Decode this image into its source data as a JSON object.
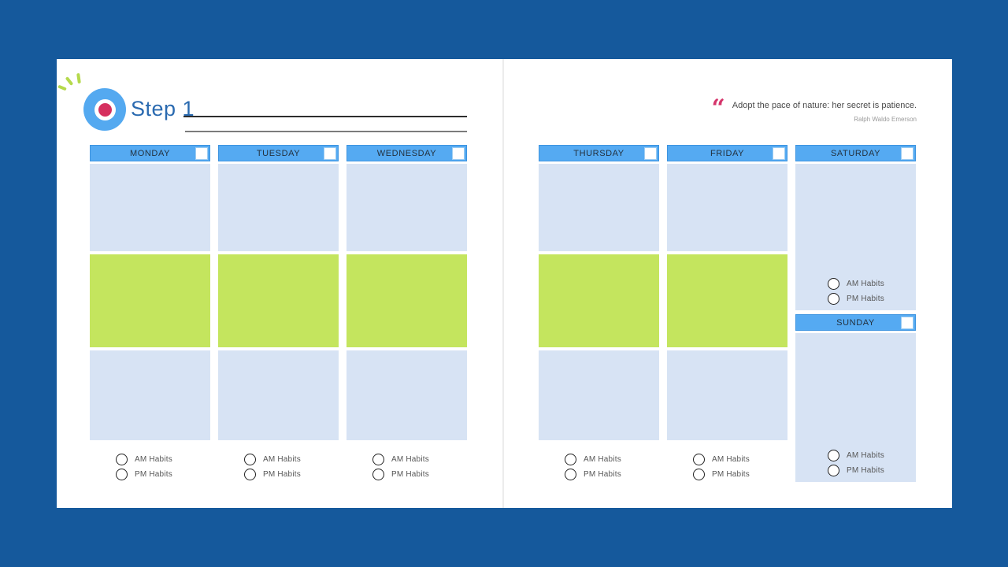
{
  "colors": {
    "background_navy": "#15599c",
    "page_white": "#ffffff",
    "header_blue": "#55aaf2",
    "header_border_blue": "#3d94e0",
    "block_light_blue": "#d7e3f4",
    "block_green": "#c4e55e",
    "title_blue": "#2a6ab0",
    "accent_pink": "#d5305f",
    "sparkle_green": "#b5d94c"
  },
  "left_page": {
    "step_title": "Step 1",
    "days": [
      {
        "label": "MONDAY"
      },
      {
        "label": "TUESDAY"
      },
      {
        "label": "WEDNESDAY"
      }
    ]
  },
  "right_page": {
    "quote": {
      "mark": "“",
      "text": "Adopt the pace of nature: her secret is patience.",
      "attribution": "Ralph Waldo Emerson"
    },
    "days": [
      {
        "label": "THURSDAY"
      },
      {
        "label": "FRIDAY"
      }
    ],
    "saturday_label": "SATURDAY",
    "sunday_label": "SUNDAY"
  },
  "habit_labels": {
    "am": "AM Habits",
    "pm": "PM Habits"
  }
}
